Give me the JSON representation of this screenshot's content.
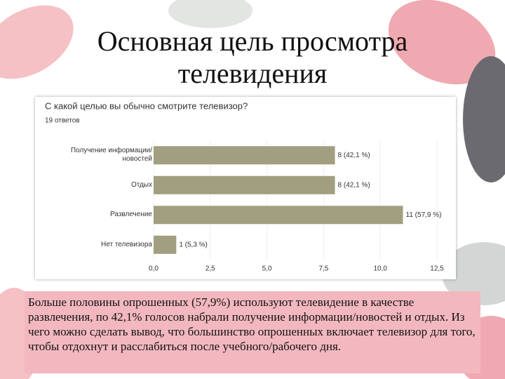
{
  "header": {
    "title": "Основная цель просмотра телевидения"
  },
  "chart_data": {
    "type": "hbar",
    "title": "С какой целью вы обычно смотрите телевизор?",
    "subtitle": "19 ответов",
    "categories": [
      "Получение информации/ новостей",
      "Отдых",
      "Развлечение",
      "Нет телевизора"
    ],
    "values": [
      8,
      8,
      11,
      1
    ],
    "value_labels": [
      "8 (42,1 %)",
      "8 (42,1 %)",
      "11 (57,9 %)",
      "1 (5,3 %)"
    ],
    "color": "#a19f80",
    "xlim": [
      0,
      12.5
    ],
    "xticks": [
      {
        "value": 0,
        "label": "0,0"
      },
      {
        "value": 2.5,
        "label": "2,5"
      },
      {
        "value": 5,
        "label": "5,0"
      },
      {
        "value": 7.5,
        "label": "7,5"
      },
      {
        "value": 10,
        "label": "10,0"
      },
      {
        "value": 12.5,
        "label": "12,5"
      }
    ],
    "grid": true
  },
  "body": {
    "text": "Больше половины опрошенных (57,9%) используют телевидение в качестве развлечения, по 42,1% голосов набрали получение информации/новостей и отдых. Из чего можно сделать вывод, что большинство опрошенных включает телевизор для того, чтобы отдохнут и расслабиться после учебного/рабочего дня."
  }
}
